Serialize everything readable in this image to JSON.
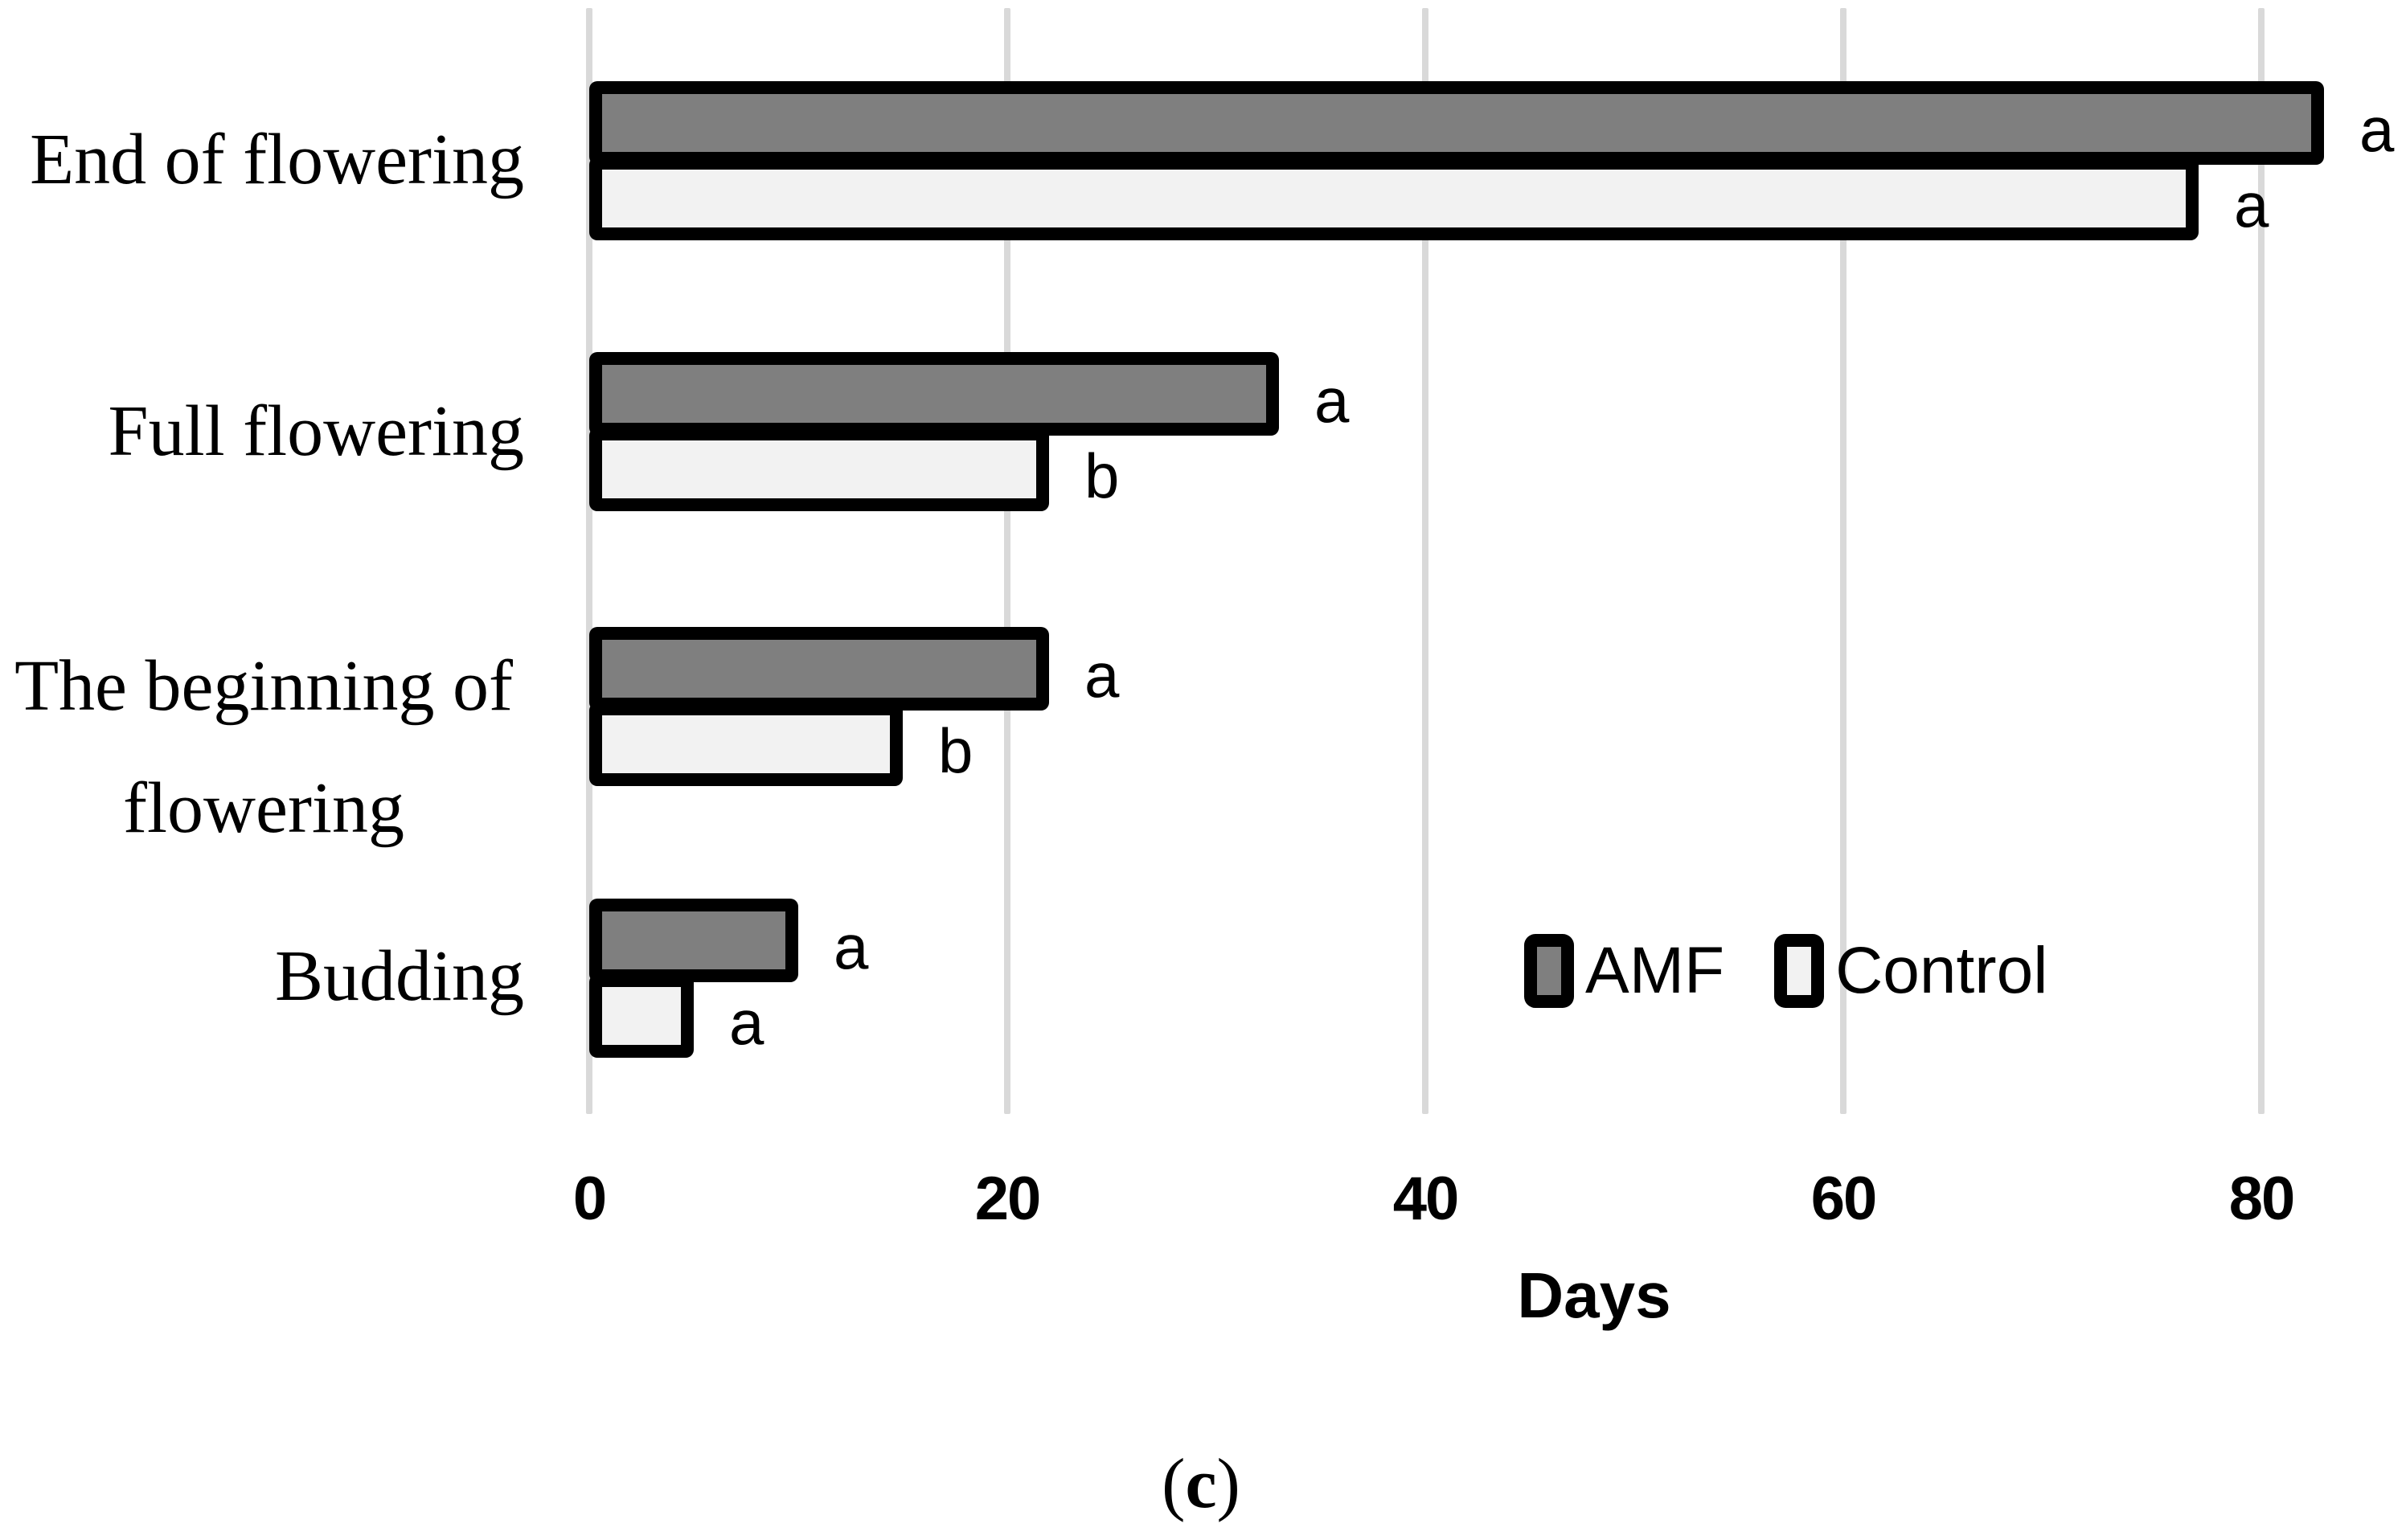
{
  "figure": {
    "caption_prefix": "(",
    "caption_letter": "c",
    "caption_suffix": ")"
  },
  "chart_data": {
    "type": "bar",
    "orientation": "horizontal",
    "title": "",
    "xlabel": "Days",
    "ylabel": "",
    "categories": [
      "End of flowering",
      "Full flowering",
      "The beginning of flowering",
      "Budding"
    ],
    "category_label_lines": [
      [
        "End of flowering"
      ],
      [
        "Full flowering"
      ],
      [
        "The beginning of",
        "flowering"
      ],
      [
        "Budding"
      ]
    ],
    "series": [
      {
        "name": "AMF",
        "color": "#7F7F7F",
        "values": [
          83,
          33,
          22,
          10
        ],
        "sig_letters": [
          "a",
          "a",
          "a",
          "a"
        ]
      },
      {
        "name": "Control",
        "color": "#F2F2F2",
        "values": [
          77,
          22,
          15,
          5
        ],
        "sig_letters": [
          "a",
          "b",
          "b",
          "a"
        ]
      }
    ],
    "x_ticks": [
      0,
      20,
      40,
      60,
      80
    ],
    "xlim": [
      0,
      86
    ],
    "grid": true,
    "legend_position": "middle-right",
    "bar_border_color": "#000000",
    "gridline_color": "#D9D9D9"
  }
}
